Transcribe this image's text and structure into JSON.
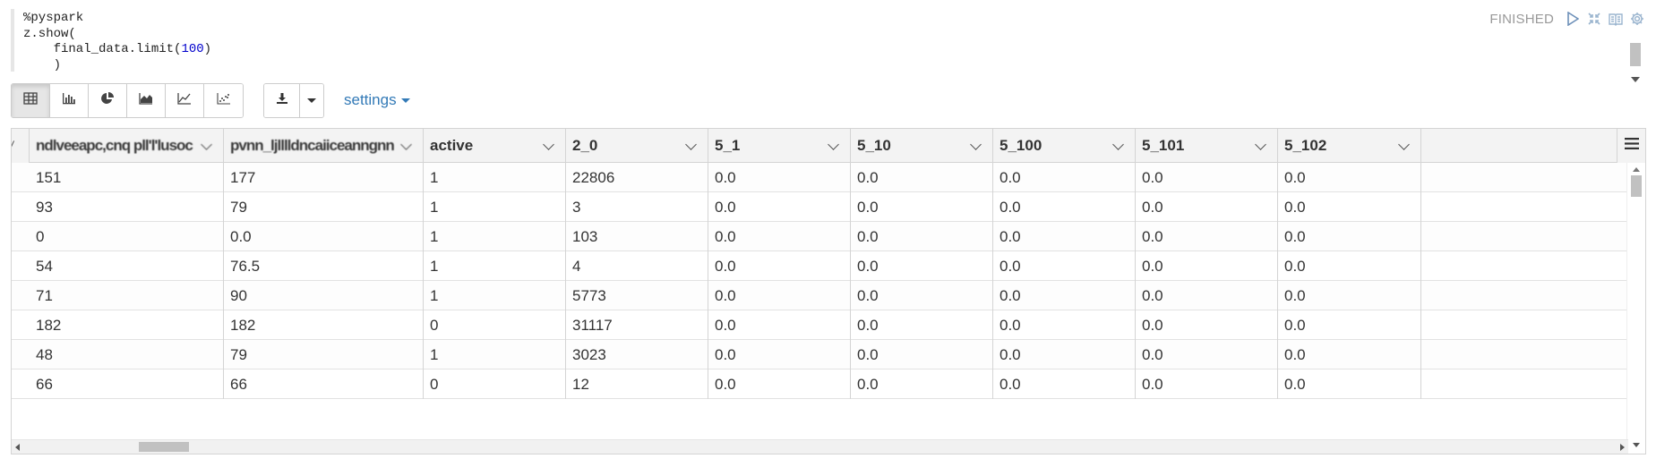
{
  "paragraph": {
    "code_lines": [
      "%pyspark",
      "z.show(",
      "    final_data.limit(100)",
      "    )"
    ],
    "status": "FINISHED"
  },
  "toolbar": {
    "views": [
      {
        "name": "table-view-button",
        "icon": "table-icon",
        "active": true
      },
      {
        "name": "bar-chart-view-button",
        "icon": "bar-chart-icon",
        "active": false
      },
      {
        "name": "pie-chart-view-button",
        "icon": "pie-chart-icon",
        "active": false
      },
      {
        "name": "area-chart-view-button",
        "icon": "area-chart-icon",
        "active": false
      },
      {
        "name": "line-chart-view-button",
        "icon": "line-chart-icon",
        "active": false
      },
      {
        "name": "scatter-chart-view-button",
        "icon": "scatter-chart-icon",
        "active": false
      }
    ],
    "download_icon": "download-icon",
    "settings_label": "settings"
  },
  "table": {
    "columns": [
      {
        "label": "ndlveeapc,cnq pll'l'lusoc",
        "obscured": true
      },
      {
        "label": "pvnn_ljlllldncaiiceanngnn",
        "obscured": true
      },
      {
        "label": "active",
        "obscured": false
      },
      {
        "label": "2_0",
        "obscured": false
      },
      {
        "label": "5_1",
        "obscured": false
      },
      {
        "label": "5_10",
        "obscured": false
      },
      {
        "label": "5_100",
        "obscured": false
      },
      {
        "label": "5_101",
        "obscured": false
      },
      {
        "label": "5_102",
        "obscured": false
      }
    ],
    "rows": [
      [
        "151",
        "177",
        "1",
        "22806",
        "0.0",
        "0.0",
        "0.0",
        "0.0",
        "0.0"
      ],
      [
        "93",
        "79",
        "1",
        "3",
        "0.0",
        "0.0",
        "0.0",
        "0.0",
        "0.0"
      ],
      [
        "0",
        "0.0",
        "1",
        "103",
        "0.0",
        "0.0",
        "0.0",
        "0.0",
        "0.0"
      ],
      [
        "54",
        "76.5",
        "1",
        "4",
        "0.0",
        "0.0",
        "0.0",
        "0.0",
        "0.0"
      ],
      [
        "71",
        "90",
        "1",
        "5773",
        "0.0",
        "0.0",
        "0.0",
        "0.0",
        "0.0"
      ],
      [
        "182",
        "182",
        "0",
        "31117",
        "0.0",
        "0.0",
        "0.0",
        "0.0",
        "0.0"
      ],
      [
        "48",
        "79",
        "1",
        "3023",
        "0.0",
        "0.0",
        "0.0",
        "0.0",
        "0.0"
      ],
      [
        "66",
        "66",
        "0",
        "12",
        "0.0",
        "0.0",
        "0.0",
        "0.0",
        "0.0"
      ]
    ]
  },
  "colors": {
    "accent": "#337ab7",
    "status": "#999999",
    "header_bg": "#f3f3f3",
    "border": "#d4d4d4"
  }
}
